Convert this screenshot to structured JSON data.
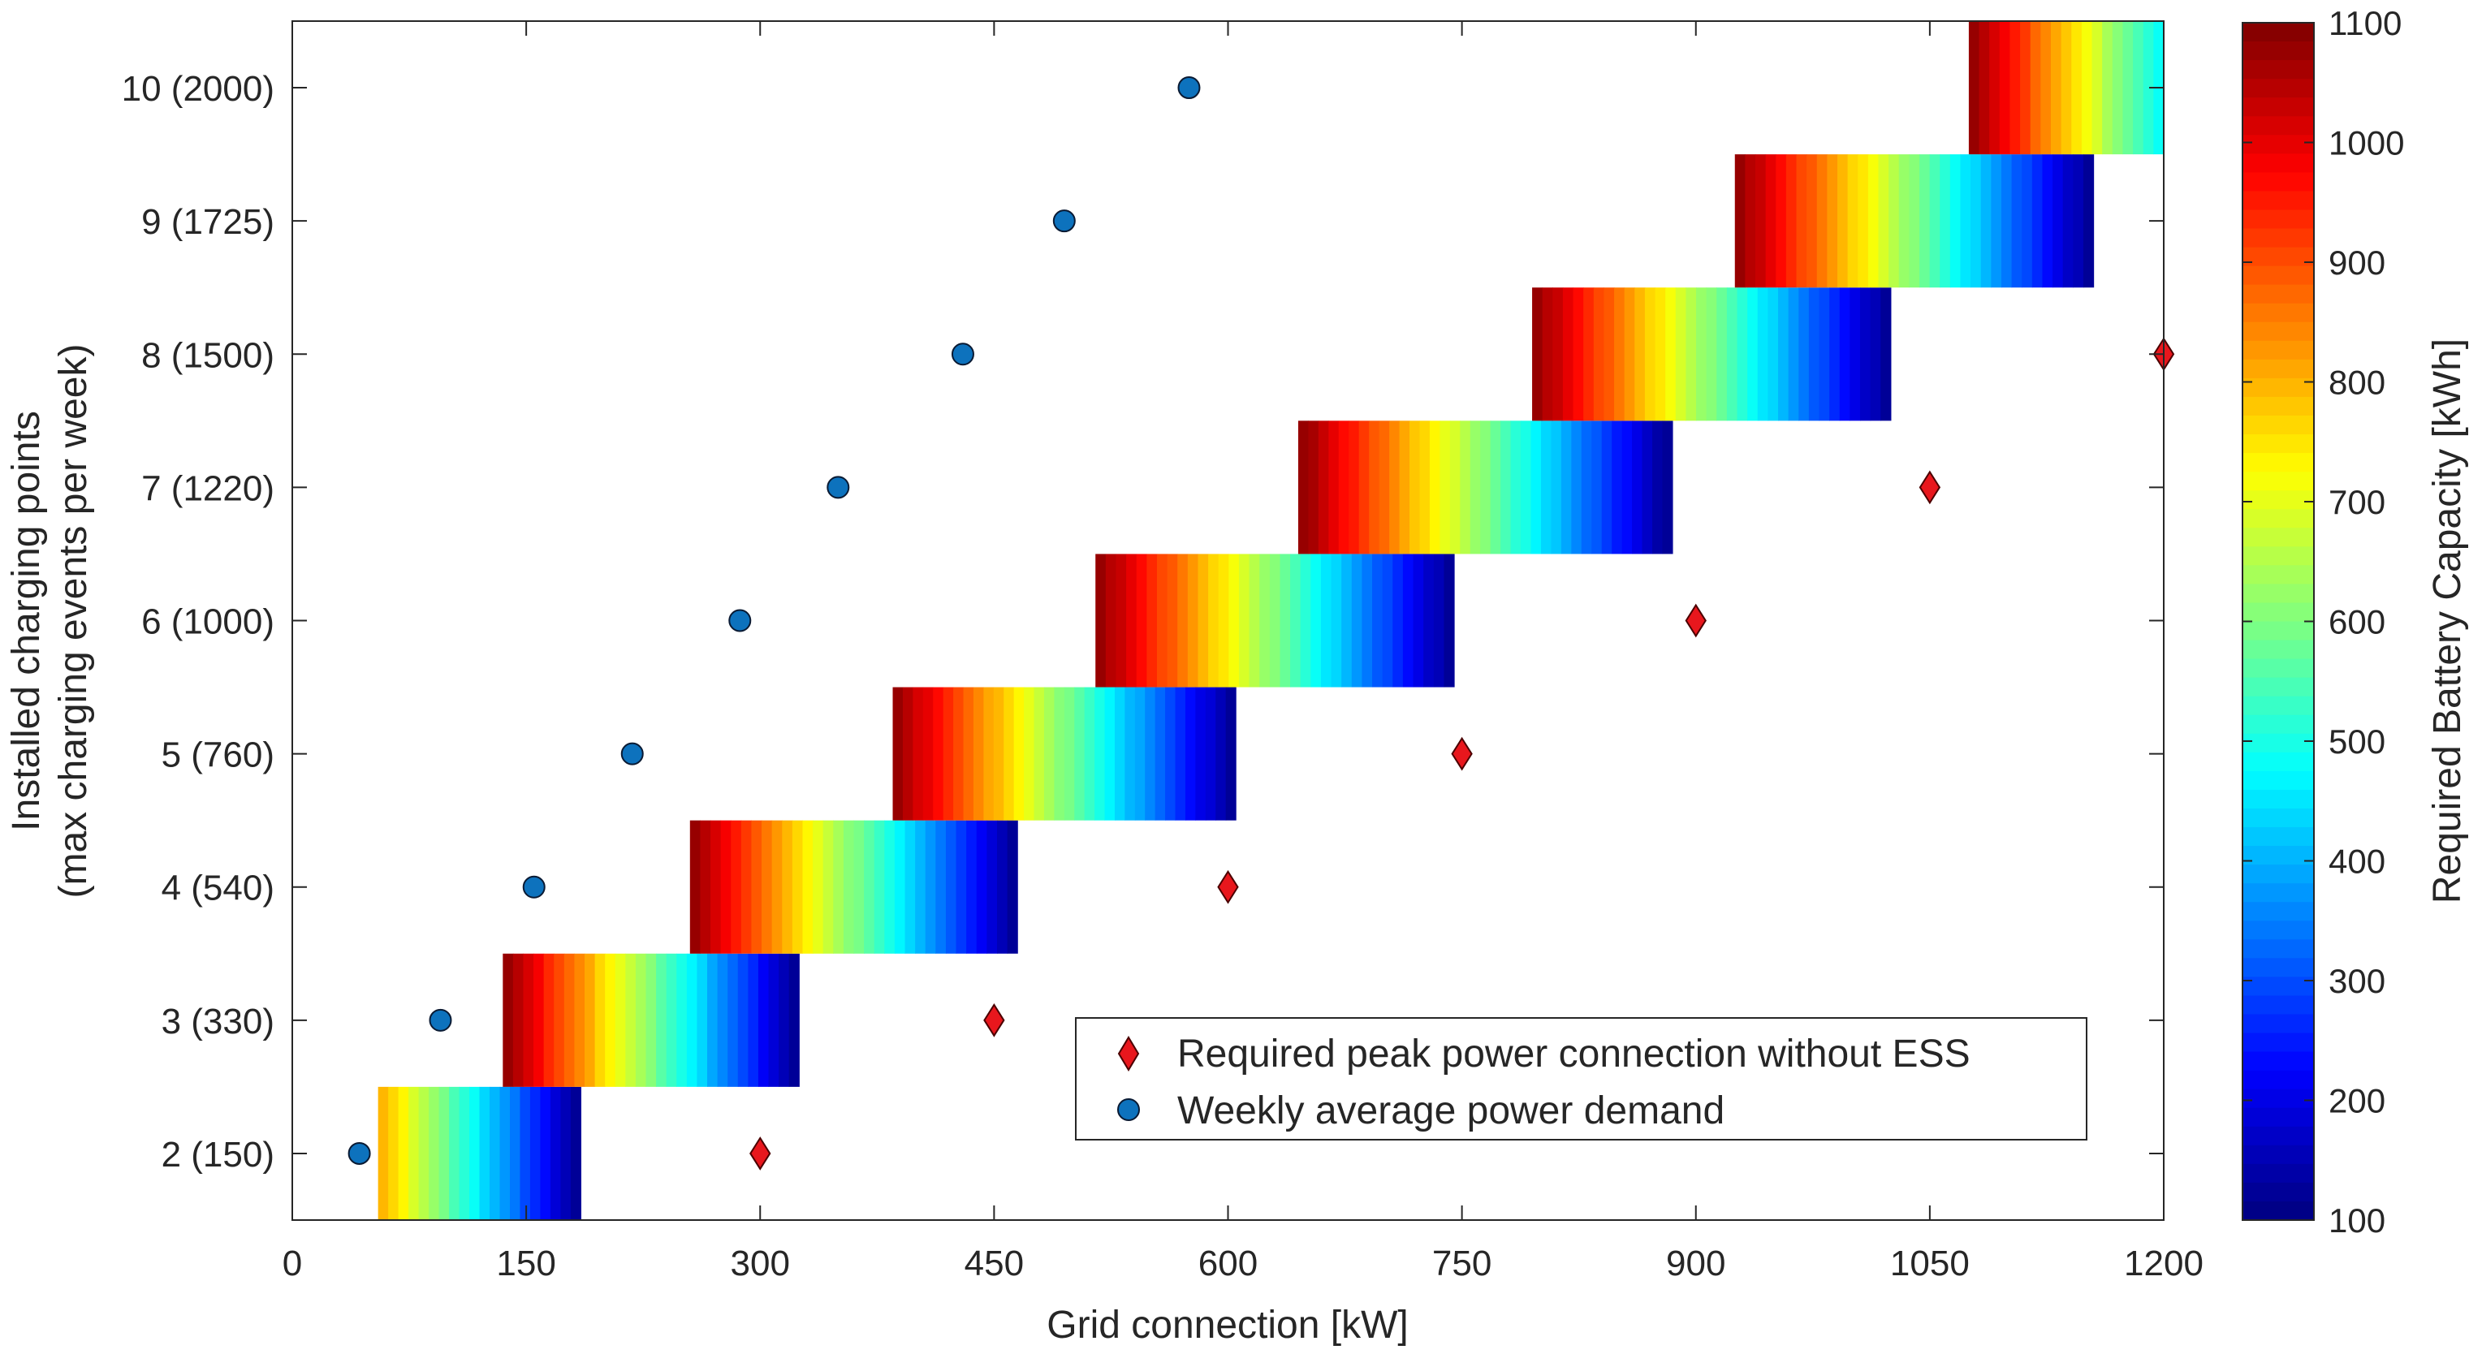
{
  "chart_data": {
    "type": "heatmap",
    "xlabel": "Grid connection [kW]",
    "ylabel_lines": [
      "Installed charging points",
      "(max charging events per week)"
    ],
    "xlim": [
      0,
      1200
    ],
    "x_ticks": [
      0,
      150,
      300,
      450,
      600,
      750,
      900,
      1050,
      1200
    ],
    "ylim": [
      1.5,
      10.5
    ],
    "y_ticks": [
      {
        "value": 2,
        "label": "2 (150)"
      },
      {
        "value": 3,
        "label": "3 (330)"
      },
      {
        "value": 4,
        "label": "4 (540)"
      },
      {
        "value": 5,
        "label": "5 (760)"
      },
      {
        "value": 6,
        "label": "6 (1000)"
      },
      {
        "value": 7,
        "label": "7 (1220)"
      },
      {
        "value": 8,
        "label": "8 (1500)"
      },
      {
        "value": 9,
        "label": "9 (1725)"
      },
      {
        "value": 10,
        "label": "10 (2000)"
      }
    ],
    "grid": false,
    "colorbar": {
      "label": "Required Battery Capacity [kWh]",
      "range": [
        100,
        1100
      ],
      "ticks": [
        100,
        200,
        300,
        400,
        500,
        600,
        700,
        800,
        900,
        1000,
        1100
      ],
      "colormap": "jet"
    },
    "heatmap_rows": [
      {
        "y": 2,
        "x_start": 55,
        "x_end": 185,
        "cap_start": 800,
        "cap_end": 120
      },
      {
        "y": 3,
        "x_start": 135,
        "x_end": 325,
        "cap_start": 1080,
        "cap_end": 120
      },
      {
        "y": 4,
        "x_start": 255,
        "x_end": 465,
        "cap_start": 1080,
        "cap_end": 120
      },
      {
        "y": 5,
        "x_start": 385,
        "x_end": 605,
        "cap_start": 1080,
        "cap_end": 120
      },
      {
        "y": 6,
        "x_start": 515,
        "x_end": 745,
        "cap_start": 1080,
        "cap_end": 120
      },
      {
        "y": 7,
        "x_start": 645,
        "x_end": 885,
        "cap_start": 1080,
        "cap_end": 120
      },
      {
        "y": 8,
        "x_start": 795,
        "x_end": 1025,
        "cap_start": 1080,
        "cap_end": 120
      },
      {
        "y": 9,
        "x_start": 925,
        "x_end": 1155,
        "cap_start": 1080,
        "cap_end": 120
      },
      {
        "y": 10,
        "x_start": 1075,
        "x_end": 1200,
        "cap_start": 1080,
        "cap_end": 480
      }
    ],
    "series": [
      {
        "name": "Required peak power connection without ESS",
        "marker": "diamond",
        "color": "#e8171d",
        "points": [
          {
            "x": 300,
            "y": 2
          },
          {
            "x": 450,
            "y": 3
          },
          {
            "x": 600,
            "y": 4
          },
          {
            "x": 750,
            "y": 5
          },
          {
            "x": 900,
            "y": 6
          },
          {
            "x": 1050,
            "y": 7
          },
          {
            "x": 1200,
            "y": 8
          }
        ]
      },
      {
        "name": "Weekly average power demand",
        "marker": "circle",
        "color": "#0d72bd",
        "points": [
          {
            "x": 43,
            "y": 2
          },
          {
            "x": 95,
            "y": 3
          },
          {
            "x": 155,
            "y": 4
          },
          {
            "x": 218,
            "y": 5
          },
          {
            "x": 287,
            "y": 6
          },
          {
            "x": 350,
            "y": 7
          },
          {
            "x": 430,
            "y": 8
          },
          {
            "x": 495,
            "y": 9
          },
          {
            "x": 575,
            "y": 10
          }
        ]
      }
    ],
    "legend_position": "lower-right"
  }
}
